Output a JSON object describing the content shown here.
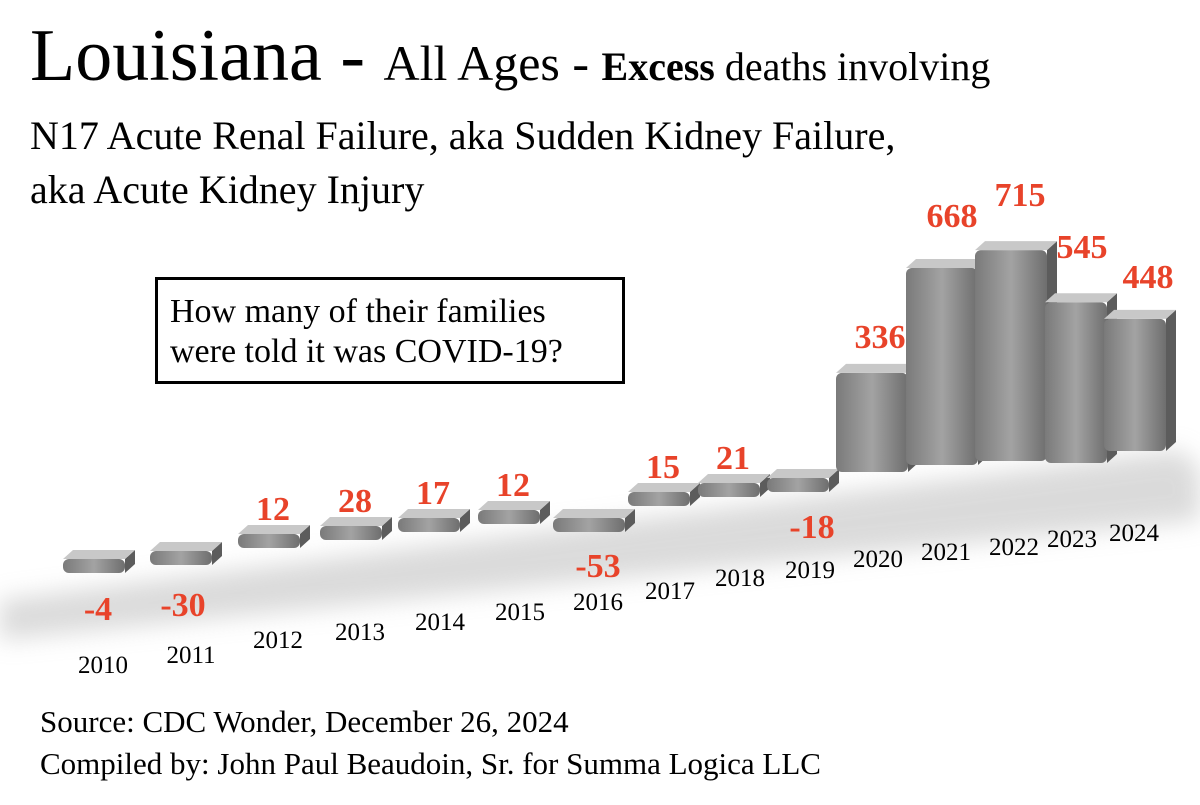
{
  "header": {
    "state": "Louisiana",
    "sep1": " - ",
    "ages": "All Ages",
    "sep2": " - ",
    "excess": "Excess",
    "deaths_involving": " deaths involving",
    "subtitle_line1": "N17 Acute Renal Failure, aka Sudden Kidney Failure,",
    "subtitle_line2": "aka Acute Kidney Injury"
  },
  "callout": {
    "line1": "How many of their families",
    "line2": "were told it was COVID-19?"
  },
  "footer": {
    "source": "Source:  CDC Wonder, December 26, 2024",
    "compiled": "Compiled by:  John Paul Beaudoin, Sr. for Summa Logica LLC"
  },
  "colors": {
    "bar": "#8a8a8a",
    "bar_dark": "#5c5c5c",
    "bar_light": "#c8c8c8",
    "label": "#e8432a"
  },
  "chart_data": {
    "type": "bar",
    "categories": [
      "2010",
      "2011",
      "2012",
      "2013",
      "2014",
      "2015",
      "2016",
      "2017",
      "2018",
      "2019",
      "2020",
      "2021",
      "2022",
      "2023",
      "2024"
    ],
    "values": [
      -4,
      -30,
      12,
      28,
      17,
      12,
      -53,
      15,
      21,
      -18,
      336,
      668,
      715,
      545,
      448
    ],
    "data_labels": [
      "-4",
      "-30",
      "12",
      "28",
      "17",
      "12",
      "-53",
      "15",
      "21",
      "-18",
      "336",
      "668",
      "715",
      "545",
      "448"
    ],
    "title": "Louisiana - All Ages - Excess deaths involving N17 Acute Renal Failure, aka Sudden Kidney Failure, aka Acute Kidney Injury",
    "xlabel": "",
    "ylabel": "",
    "grid": false,
    "legend": "none"
  }
}
